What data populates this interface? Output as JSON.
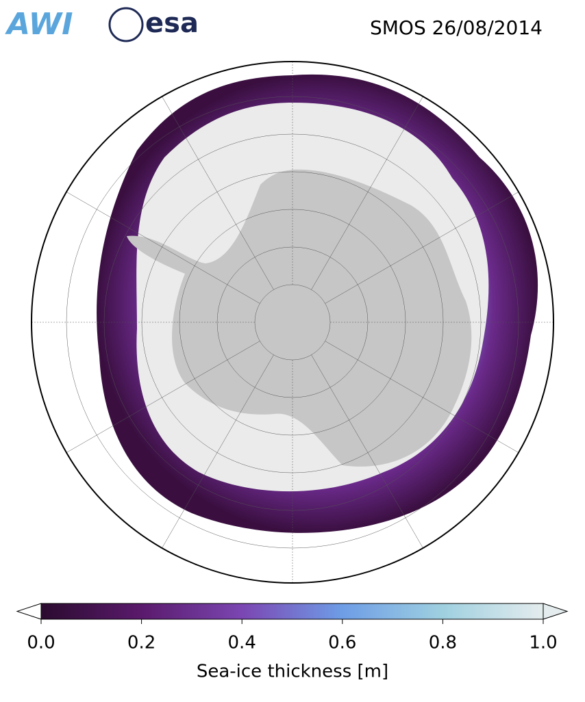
{
  "header": {
    "logos": [
      "AWI",
      "esa"
    ],
    "title": "SMOS 26/08/2014"
  },
  "colorbar": {
    "label": "Sea-ice thickness [m]",
    "lim": [
      0,
      1
    ],
    "ticks": [
      {
        "value": 0,
        "label": "0.0"
      },
      0.2,
      0.4,
      0.6,
      0.8,
      {
        "value": 1,
        "label": "1.0"
      }
    ]
  }
}
